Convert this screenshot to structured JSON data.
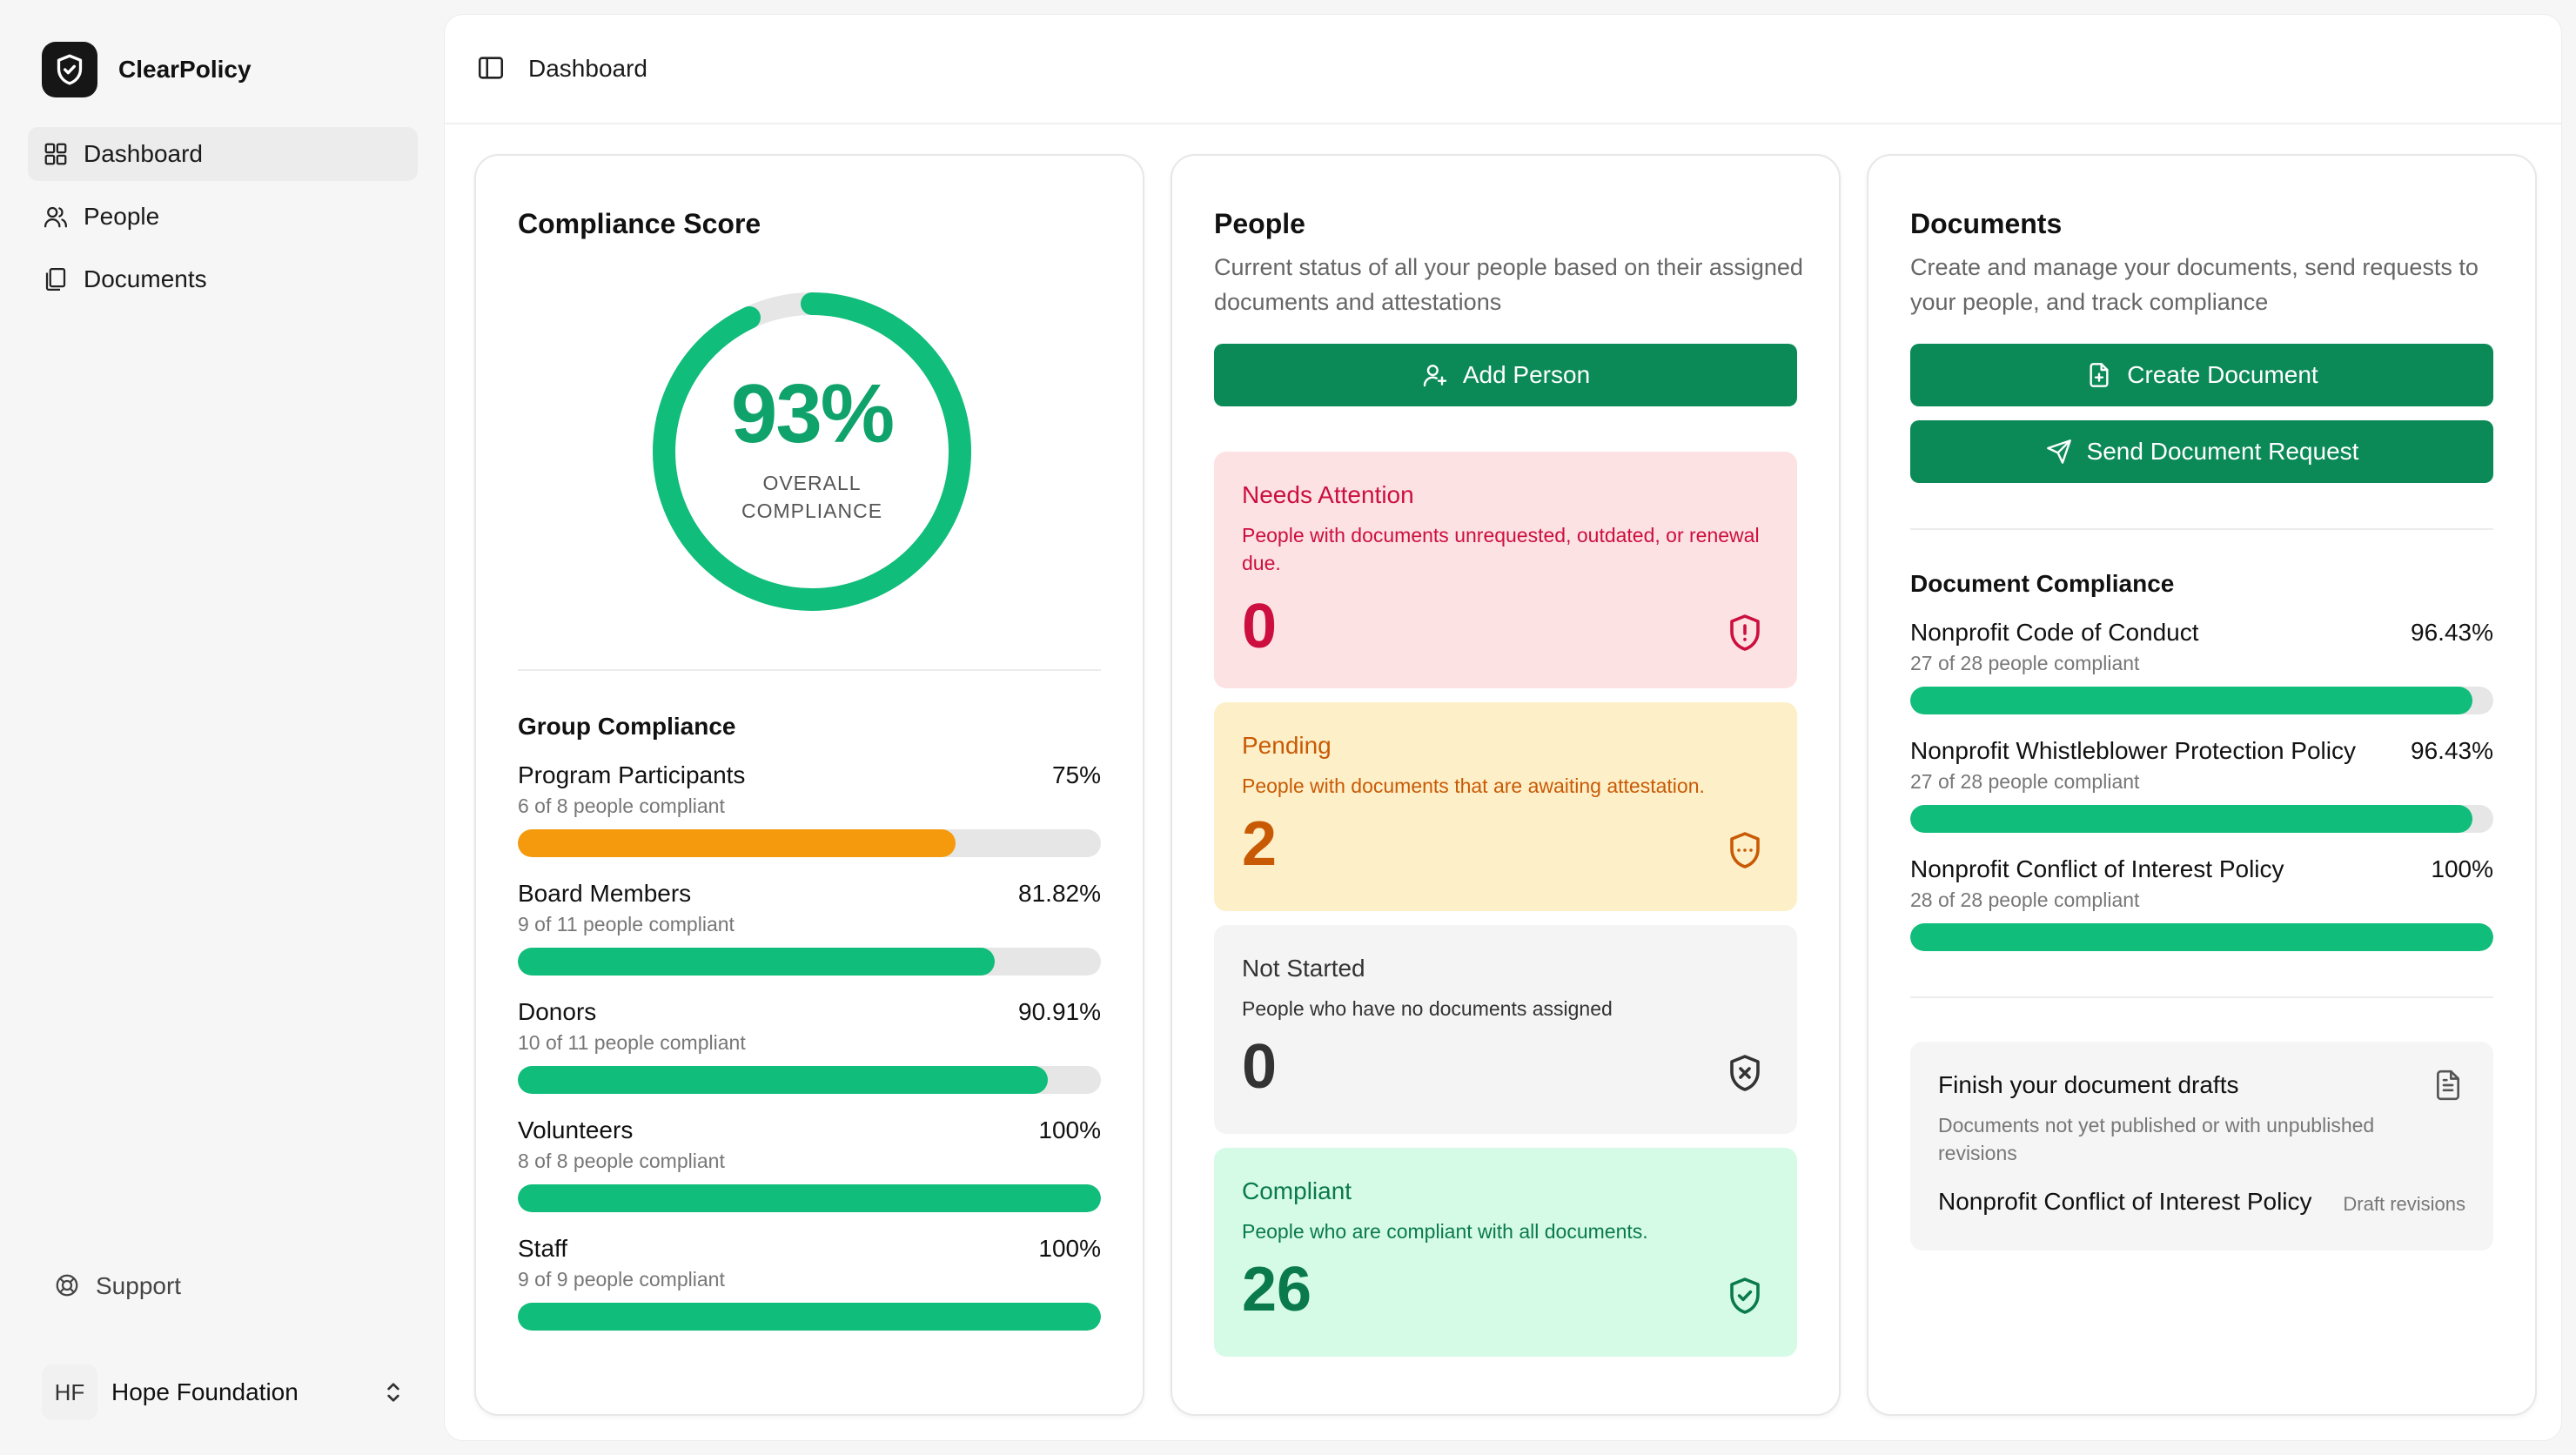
{
  "app": {
    "name": "ClearPolicy"
  },
  "sidebar": {
    "items": [
      {
        "label": "Dashboard",
        "icon": "grid-icon",
        "active": true
      },
      {
        "label": "People",
        "icon": "users-icon",
        "active": false
      },
      {
        "label": "Documents",
        "icon": "documents-icon",
        "active": false
      }
    ],
    "support_label": "Support",
    "org": {
      "initials": "HF",
      "name": "Hope Foundation"
    }
  },
  "header": {
    "breadcrumb": "Dashboard"
  },
  "compliance": {
    "title": "Compliance Score",
    "percent_text": "93%",
    "percent_value": 93,
    "label_line1": "OVERALL",
    "label_line2": "COMPLIANCE",
    "group_title": "Group Compliance",
    "groups": [
      {
        "name": "Program Participants",
        "value": "75%",
        "sub": "6 of 8 people compliant",
        "fraction": 0.75,
        "color": "#f59a0c"
      },
      {
        "name": "Board Members",
        "value": "81.82%",
        "sub": "9 of 11 people compliant",
        "fraction": 0.8182,
        "color": "#10bd7b"
      },
      {
        "name": "Donors",
        "value": "90.91%",
        "sub": "10 of 11 people compliant",
        "fraction": 0.9091,
        "color": "#10bd7b"
      },
      {
        "name": "Volunteers",
        "value": "100%",
        "sub": "8 of 8 people compliant",
        "fraction": 1.0,
        "color": "#10bd7b"
      },
      {
        "name": "Staff",
        "value": "100%",
        "sub": "9 of 9 people compliant",
        "fraction": 1.0,
        "color": "#10bd7b"
      }
    ]
  },
  "people": {
    "title": "People",
    "description": "Current status of all your people based on their assigned documents and attestations",
    "add_button": "Add Person",
    "statuses": {
      "attention": {
        "title": "Needs Attention",
        "desc": "People with documents unrequested, outdated, or renewal due.",
        "count": "0"
      },
      "pending": {
        "title": "Pending",
        "desc": "People with documents that are awaiting attestation.",
        "count": "2"
      },
      "not_started": {
        "title": "Not Started",
        "desc": "People who have no documents assigned",
        "count": "0"
      },
      "compliant": {
        "title": "Compliant",
        "desc": "People who are compliant with all documents.",
        "count": "26"
      }
    }
  },
  "documents": {
    "title": "Documents",
    "description": "Create and manage your documents, send requests to your people, and track compliance",
    "create_button": "Create Document",
    "send_button": "Send Document Request",
    "compliance_title": "Document Compliance",
    "items": [
      {
        "name": "Nonprofit Code of Conduct",
        "value": "96.43%",
        "sub": "27 of 28 people compliant",
        "fraction": 0.9643
      },
      {
        "name": "Nonprofit Whistleblower Protection Policy",
        "value": "96.43%",
        "sub": "27 of 28 people compliant",
        "fraction": 0.9643
      },
      {
        "name": "Nonprofit Conflict of Interest Policy",
        "value": "100%",
        "sub": "28 of 28 people compliant",
        "fraction": 1.0
      }
    ],
    "drafts": {
      "title": "Finish your document drafts",
      "desc": "Documents not yet published or with unpublished revisions",
      "item": "Nonprofit Conflict of Interest Policy",
      "tag": "Draft revisions"
    }
  },
  "colors": {
    "accent": "#0b8a57",
    "progress_green": "#10bd7b",
    "progress_orange": "#f59a0c",
    "attention": "#cc0f3f",
    "pending": "#c95a05",
    "compliant": "#0a7a4c"
  }
}
